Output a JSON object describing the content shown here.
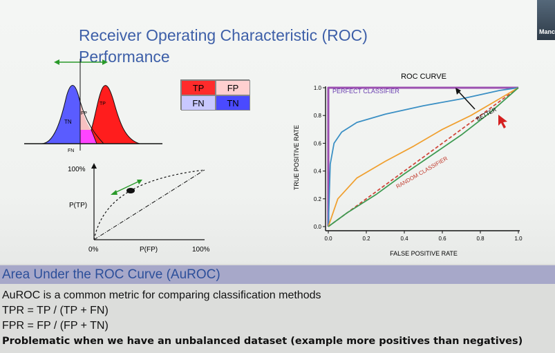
{
  "slide": {
    "title_line1": "Receiver Operating Characteristic (ROC)",
    "title_line2": "Performance"
  },
  "video": {
    "participant_label": "Manc"
  },
  "distribution_plot": {
    "labels": {
      "tn": "TN",
      "tp": "TP",
      "fp": "FP",
      "fn": "FN"
    },
    "colors": {
      "negative": "#5a5cff",
      "positive": "#ff1d1d",
      "overlap": "#ff44ff",
      "fp_region": "#f7c1c1"
    }
  },
  "confusion_matrix": {
    "cells": [
      {
        "label": "TP",
        "bg": "#ff2b2b"
      },
      {
        "label": "FP",
        "bg": "#ffd0d0"
      },
      {
        "label": "FN",
        "bg": "#c8c8ff"
      },
      {
        "label": "TN",
        "bg": "#4a4aff"
      }
    ]
  },
  "small_roc": {
    "y_top_label": "100%",
    "y_label": "P(TP)",
    "x_origin_label": "0%",
    "x_label": "P(FP)",
    "x_end_label": "100%"
  },
  "chart_data": {
    "type": "line",
    "title": "ROC CURVE",
    "xlabel": "FALSE POSITIVE RATE",
    "ylabel": "TRUE POSITIVE RATE",
    "xlim": [
      0,
      1
    ],
    "ylim": [
      0,
      1
    ],
    "xticks": [
      "0.0",
      "0.2",
      "0.4",
      "0.6",
      "0.8",
      "1.0"
    ],
    "yticks": [
      "0.0",
      "0.2",
      "0.4",
      "0.6",
      "0.8",
      "1.0"
    ],
    "annotations": [
      "PERFECT CLASSIFIER",
      "BETTER",
      "RANDOM CLASSIFIER"
    ],
    "series": [
      {
        "color": "#9b4fb0",
        "dash": false,
        "x": [
          0,
          0,
          1
        ],
        "y": [
          0,
          1,
          1
        ]
      },
      {
        "color": "#d0463b",
        "dash": true,
        "x": [
          0,
          1
        ],
        "y": [
          0,
          1
        ]
      },
      {
        "color": "#3a8fc4",
        "dash": false,
        "x": [
          0,
          0.01,
          0.03,
          0.07,
          0.15,
          0.3,
          0.5,
          0.7,
          0.9,
          1.0
        ],
        "y": [
          0,
          0.45,
          0.6,
          0.68,
          0.75,
          0.81,
          0.87,
          0.92,
          0.98,
          1.0
        ]
      },
      {
        "color": "#f0a030",
        "dash": false,
        "x": [
          0,
          0.05,
          0.15,
          0.3,
          0.45,
          0.6,
          0.75,
          0.9,
          1.0
        ],
        "y": [
          0,
          0.2,
          0.35,
          0.47,
          0.58,
          0.7,
          0.8,
          0.92,
          1.0
        ]
      },
      {
        "color": "#3f9a52",
        "dash": false,
        "x": [
          0,
          0.1,
          0.25,
          0.4,
          0.55,
          0.7,
          0.85,
          1.0
        ],
        "y": [
          0,
          0.1,
          0.23,
          0.38,
          0.52,
          0.66,
          0.82,
          1.0
        ]
      }
    ]
  },
  "section": {
    "title": "Area Under the ROC Curve (AuROC)",
    "lines": [
      "AuROC is a common metric for comparing classification methods",
      "TPR = TP / (TP + FN)",
      "FPR = FP / (FP + TN)"
    ],
    "bold_line": "Problematic when we have an unbalanced dataset (example more positives than negatives)"
  }
}
